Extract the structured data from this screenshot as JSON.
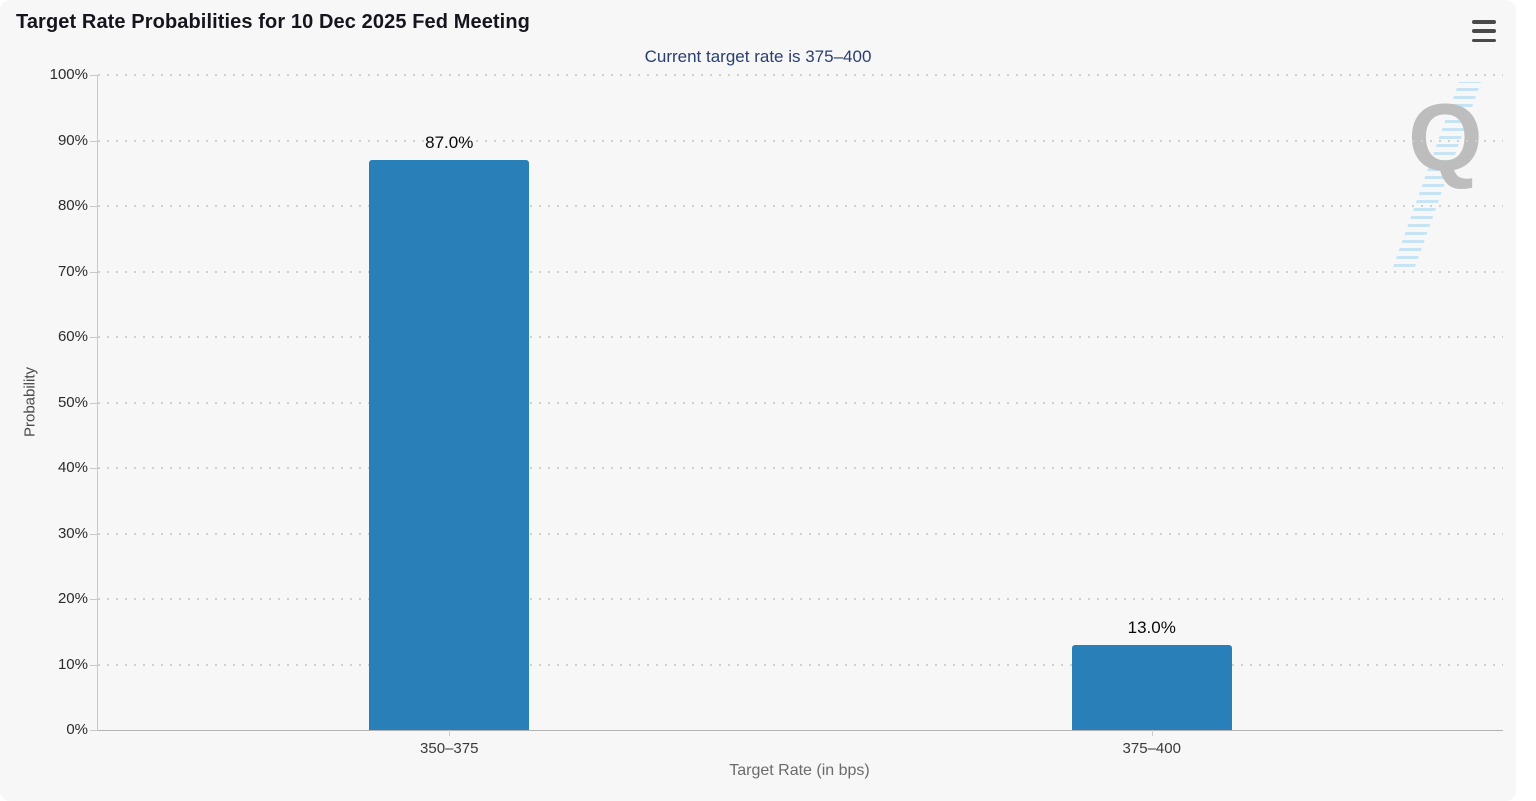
{
  "header": {
    "title": "Target Rate Probabilities for 10 Dec 2025 Fed Meeting",
    "subtitle": "Current target rate is 375–400",
    "menu_icon": "hamburger-menu-icon"
  },
  "watermark": {
    "letter": "Q"
  },
  "colors": {
    "bar": "#2980b9",
    "title": "#15151e",
    "subtitle": "#2a3f6f",
    "card_background": "#f7f7f7",
    "gridline": "#cfcfcf",
    "axis": "#b3b3b3",
    "watermark_gray": "#bdbdbd",
    "watermark_blue": "#c7e4f4"
  },
  "chart_data": {
    "type": "bar",
    "title": "Target Rate Probabilities for 10 Dec 2025 Fed Meeting",
    "subtitle": "Current target rate is 375–400",
    "categories": [
      "350–375",
      "375–400"
    ],
    "values": [
      87.0,
      13.0
    ],
    "value_labels": [
      "87.0%",
      "13.0%"
    ],
    "xlabel": "Target Rate (in bps)",
    "ylabel": "Probability",
    "ylim": [
      0,
      100
    ],
    "y_tick_step": 10,
    "y_tick_labels": [
      "0%",
      "10%",
      "20%",
      "30%",
      "40%",
      "50%",
      "60%",
      "70%",
      "80%",
      "90%",
      "100%"
    ],
    "grid": "horizontal-dotted",
    "legend": "none",
    "bar_color": "#2980b9"
  }
}
